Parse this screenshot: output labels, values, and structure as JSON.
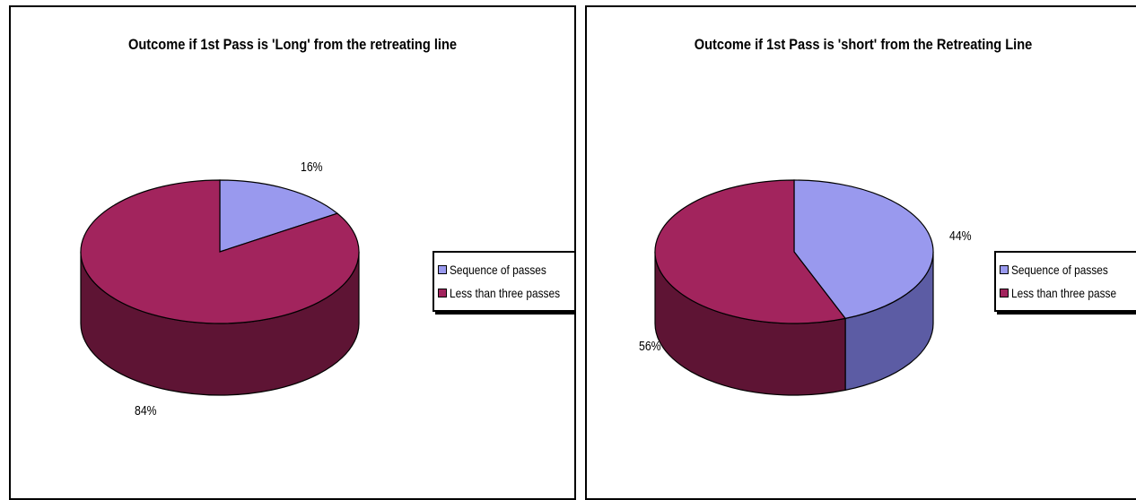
{
  "colors": {
    "sequence_top": "#9999ee",
    "sequence_side": "#5c5ca4",
    "less_top": "#a2245d",
    "less_side": "#5e1434",
    "outline": "#000000"
  },
  "chart_data": [
    {
      "type": "pie",
      "title": "Outcome if 1st Pass is 'Long'  from the retreating line",
      "categories": [
        "Sequence of passes",
        "Less than three passes"
      ],
      "values": [
        16,
        84
      ],
      "labels": [
        "16%",
        "84%"
      ],
      "legend": {
        "placement": "right",
        "entries": [
          "Sequence of passes",
          "Less than three passes"
        ]
      }
    },
    {
      "type": "pie",
      "title": "Outcome if 1st Pass is 'short' from the Retreating Line",
      "categories": [
        "Sequence of passes",
        "Less than three passes"
      ],
      "values": [
        44,
        56
      ],
      "labels": [
        "44%",
        "56%"
      ],
      "legend": {
        "placement": "right",
        "entries": [
          "Sequence of passes",
          "Less than three passe"
        ]
      }
    }
  ]
}
